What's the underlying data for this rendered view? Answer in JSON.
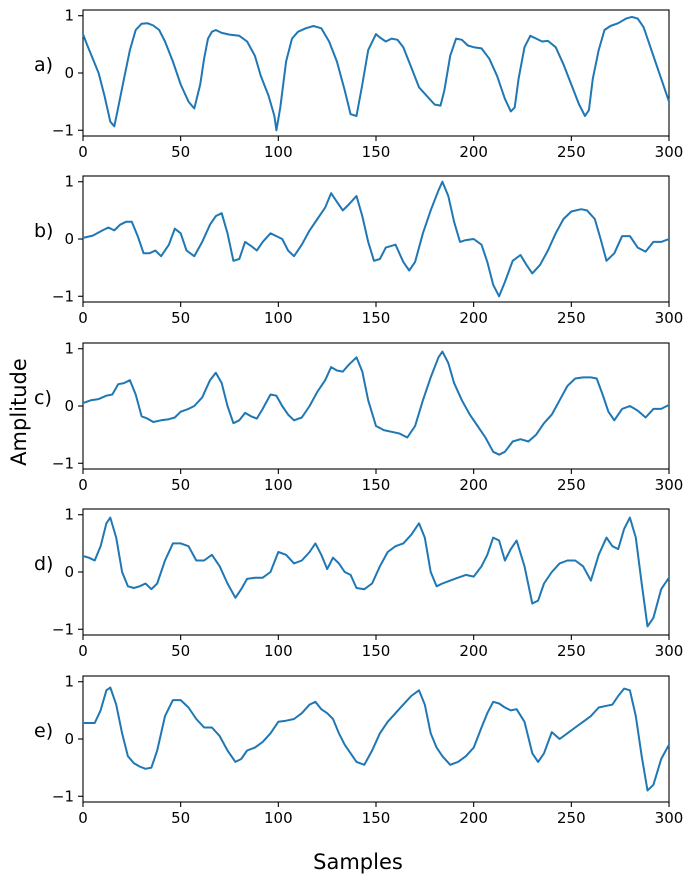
{
  "chart_data": {
    "type": "line",
    "xlabel": "Samples",
    "ylabel": "Amplitude",
    "line_color": "#1f77b4",
    "grid": false,
    "panels": [
      {
        "label": "a)",
        "xlim": [
          0,
          300
        ],
        "ylim": [
          -1.1,
          1.1
        ],
        "xticks": [
          0,
          50,
          100,
          150,
          200,
          250,
          300
        ],
        "yticks": [
          -1,
          0,
          1
        ],
        "series": [
          {
            "x": [
              0,
              2,
              5,
              8,
              11,
              14,
              16,
              18,
              21,
              24,
              27,
              30,
              33,
              36,
              39,
              42,
              46,
              50,
              54,
              57,
              60,
              62,
              64,
              66,
              68,
              71,
              75,
              80,
              84,
              88,
              91,
              95,
              98,
              99,
              101,
              104,
              107,
              110,
              114,
              118,
              122,
              126,
              130,
              134,
              137,
              140,
              143,
              146,
              150,
              152,
              155,
              158,
              161,
              164,
              168,
              172,
              176,
              180,
              183,
              185,
              188,
              191,
              194,
              197,
              200,
              204,
              208,
              212,
              216,
              219,
              221,
              223,
              226,
              229,
              232,
              235,
              238,
              242,
              246,
              250,
              254,
              257,
              259,
              261,
              264,
              267,
              270,
              274,
              278,
              281,
              284,
              287,
              290,
              293,
              296,
              298,
              300
            ],
            "y": [
              0.68,
              0.5,
              0.25,
              0.0,
              -0.4,
              -0.85,
              -0.93,
              -0.6,
              -0.1,
              0.4,
              0.75,
              0.86,
              0.87,
              0.83,
              0.75,
              0.55,
              0.2,
              -0.2,
              -0.5,
              -0.62,
              -0.2,
              0.25,
              0.6,
              0.72,
              0.75,
              0.7,
              0.67,
              0.65,
              0.55,
              0.3,
              -0.05,
              -0.4,
              -0.75,
              -1.0,
              -0.6,
              0.2,
              0.6,
              0.72,
              0.78,
              0.82,
              0.78,
              0.55,
              0.2,
              -0.3,
              -0.72,
              -0.75,
              -0.2,
              0.4,
              0.68,
              0.62,
              0.55,
              0.6,
              0.58,
              0.45,
              0.1,
              -0.25,
              -0.4,
              -0.55,
              -0.57,
              -0.3,
              0.3,
              0.6,
              0.58,
              0.48,
              0.45,
              0.43,
              0.25,
              -0.05,
              -0.45,
              -0.67,
              -0.6,
              -0.1,
              0.45,
              0.65,
              0.6,
              0.55,
              0.56,
              0.45,
              0.15,
              -0.2,
              -0.55,
              -0.75,
              -0.65,
              -0.1,
              0.4,
              0.75,
              0.82,
              0.87,
              0.95,
              0.98,
              0.95,
              0.8,
              0.5,
              0.2,
              -0.1,
              -0.3,
              -0.5
            ]
          }
        ]
      },
      {
        "label": "b)",
        "xlim": [
          0,
          300
        ],
        "ylim": [
          -1.1,
          1.1
        ],
        "xticks": [
          0,
          50,
          100,
          150,
          200,
          250,
          300
        ],
        "yticks": [
          -1,
          0,
          1
        ],
        "series": [
          {
            "x": [
              0,
              5,
              10,
              13,
              16,
              19,
              22,
              25,
              28,
              31,
              34,
              37,
              40,
              44,
              47,
              50,
              53,
              57,
              61,
              65,
              68,
              71,
              74,
              77,
              80,
              83,
              86,
              89,
              92,
              96,
              99,
              102,
              105,
              108,
              112,
              116,
              120,
              124,
              127,
              130,
              133,
              136,
              140,
              143,
              146,
              149,
              152,
              155,
              160,
              164,
              167,
              170,
              174,
              178,
              182,
              184,
              187,
              190,
              193,
              196,
              200,
              204,
              207,
              210,
              213,
              216,
              220,
              224,
              227,
              230,
              234,
              238,
              242,
              246,
              250,
              255,
              258,
              262,
              265,
              268,
              272,
              276,
              280,
              284,
              288,
              292,
              296,
              300
            ],
            "y": [
              0.02,
              0.06,
              0.15,
              0.2,
              0.15,
              0.25,
              0.3,
              0.3,
              0.05,
              -0.25,
              -0.25,
              -0.2,
              -0.3,
              -0.1,
              0.18,
              0.1,
              -0.2,
              -0.3,
              -0.05,
              0.25,
              0.4,
              0.45,
              0.1,
              -0.38,
              -0.35,
              -0.05,
              -0.12,
              -0.2,
              -0.05,
              0.1,
              0.05,
              0.0,
              -0.2,
              -0.3,
              -0.1,
              0.15,
              0.35,
              0.55,
              0.8,
              0.65,
              0.5,
              0.6,
              0.75,
              0.4,
              -0.05,
              -0.38,
              -0.35,
              -0.15,
              -0.1,
              -0.4,
              -0.55,
              -0.4,
              0.1,
              0.5,
              0.85,
              1.0,
              0.75,
              0.3,
              -0.05,
              -0.02,
              0.0,
              -0.1,
              -0.4,
              -0.8,
              -1.0,
              -0.75,
              -0.38,
              -0.28,
              -0.45,
              -0.6,
              -0.45,
              -0.2,
              0.1,
              0.35,
              0.48,
              0.52,
              0.5,
              0.35,
              0.0,
              -0.38,
              -0.25,
              0.05,
              0.05,
              -0.15,
              -0.22,
              -0.05,
              -0.05,
              0.0
            ]
          }
        ]
      },
      {
        "label": "c)",
        "xlim": [
          0,
          300
        ],
        "ylim": [
          -1.1,
          1.1
        ],
        "xticks": [
          0,
          50,
          100,
          150,
          200,
          250,
          300
        ],
        "yticks": [
          -1,
          0,
          1
        ],
        "series": [
          {
            "x": [
              0,
              4,
              8,
              12,
              15,
              18,
              21,
              24,
              27,
              30,
              33,
              36,
              40,
              44,
              47,
              50,
              54,
              57,
              61,
              65,
              68,
              71,
              74,
              77,
              80,
              83,
              86,
              89,
              92,
              96,
              99,
              102,
              105,
              108,
              112,
              116,
              120,
              124,
              127,
              130,
              133,
              136,
              140,
              143,
              146,
              150,
              154,
              158,
              162,
              166,
              170,
              174,
              178,
              182,
              184,
              187,
              190,
              194,
              198,
              202,
              206,
              210,
              213,
              216,
              220,
              224,
              228,
              232,
              236,
              240,
              244,
              248,
              252,
              256,
              260,
              263,
              266,
              269,
              272,
              276,
              280,
              284,
              288,
              292,
              296,
              300
            ],
            "y": [
              0.05,
              0.1,
              0.12,
              0.18,
              0.2,
              0.38,
              0.4,
              0.45,
              0.2,
              -0.18,
              -0.22,
              -0.28,
              -0.25,
              -0.23,
              -0.2,
              -0.1,
              -0.05,
              0.0,
              0.15,
              0.45,
              0.58,
              0.4,
              0.0,
              -0.3,
              -0.25,
              -0.12,
              -0.18,
              -0.22,
              -0.05,
              0.2,
              0.18,
              0.0,
              -0.15,
              -0.25,
              -0.2,
              0.0,
              0.25,
              0.45,
              0.68,
              0.62,
              0.6,
              0.72,
              0.85,
              0.6,
              0.1,
              -0.35,
              -0.42,
              -0.45,
              -0.48,
              -0.55,
              -0.35,
              0.1,
              0.5,
              0.85,
              0.95,
              0.75,
              0.4,
              0.1,
              -0.15,
              -0.35,
              -0.55,
              -0.8,
              -0.85,
              -0.8,
              -0.62,
              -0.58,
              -0.62,
              -0.5,
              -0.3,
              -0.15,
              0.1,
              0.35,
              0.48,
              0.5,
              0.5,
              0.48,
              0.2,
              -0.1,
              -0.25,
              -0.05,
              0.0,
              -0.08,
              -0.2,
              -0.05,
              -0.05,
              0.02
            ]
          }
        ]
      },
      {
        "label": "d)",
        "xlim": [
          0,
          300
        ],
        "ylim": [
          -1.1,
          1.1
        ],
        "xticks": [
          0,
          50,
          100,
          150,
          200,
          250,
          300
        ],
        "yticks": [
          -1,
          0,
          1
        ],
        "series": [
          {
            "x": [
              0,
              3,
              6,
              9,
              12,
              14,
              17,
              20,
              23,
              26,
              29,
              32,
              35,
              38,
              42,
              46,
              50,
              54,
              58,
              62,
              66,
              70,
              74,
              78,
              81,
              84,
              88,
              92,
              96,
              100,
              104,
              108,
              112,
              116,
              119,
              122,
              125,
              128,
              131,
              134,
              137,
              140,
              144,
              148,
              152,
              156,
              160,
              164,
              168,
              172,
              175,
              178,
              181,
              184,
              188,
              192,
              196,
              200,
              204,
              207,
              210,
              213,
              216,
              219,
              222,
              226,
              230,
              233,
              236,
              240,
              244,
              248,
              252,
              256,
              260,
              264,
              268,
              271,
              274,
              277,
              280,
              283,
              286,
              289,
              292,
              296,
              300
            ],
            "y": [
              0.28,
              0.25,
              0.2,
              0.45,
              0.85,
              0.95,
              0.6,
              0.0,
              -0.25,
              -0.28,
              -0.25,
              -0.2,
              -0.3,
              -0.2,
              0.2,
              0.5,
              0.5,
              0.45,
              0.2,
              0.2,
              0.3,
              0.1,
              -0.2,
              -0.45,
              -0.3,
              -0.12,
              -0.1,
              -0.1,
              0.0,
              0.35,
              0.3,
              0.15,
              0.2,
              0.35,
              0.5,
              0.3,
              0.05,
              0.25,
              0.15,
              0.0,
              -0.05,
              -0.28,
              -0.3,
              -0.2,
              0.1,
              0.35,
              0.45,
              0.5,
              0.65,
              0.85,
              0.6,
              0.0,
              -0.25,
              -0.2,
              -0.15,
              -0.1,
              -0.05,
              -0.08,
              0.1,
              0.3,
              0.6,
              0.55,
              0.2,
              0.4,
              0.55,
              0.1,
              -0.55,
              -0.5,
              -0.2,
              0.0,
              0.15,
              0.2,
              0.2,
              0.1,
              -0.15,
              0.3,
              0.6,
              0.45,
              0.4,
              0.75,
              0.95,
              0.6,
              -0.2,
              -0.95,
              -0.8,
              -0.3,
              -0.1
            ]
          }
        ]
      },
      {
        "label": "e)",
        "xlim": [
          0,
          300
        ],
        "ylim": [
          -1.1,
          1.1
        ],
        "xticks": [
          0,
          50,
          100,
          150,
          200,
          250,
          300
        ],
        "yticks": [
          -1,
          0,
          1
        ],
        "series": [
          {
            "x": [
              0,
              3,
              6,
              9,
              12,
              14,
              17,
              20,
              23,
              26,
              29,
              32,
              35,
              38,
              42,
              46,
              50,
              54,
              58,
              62,
              66,
              70,
              74,
              78,
              81,
              84,
              88,
              92,
              96,
              100,
              104,
              108,
              112,
              116,
              119,
              122,
              125,
              128,
              131,
              134,
              137,
              140,
              144,
              148,
              152,
              156,
              160,
              164,
              168,
              172,
              175,
              178,
              181,
              184,
              188,
              192,
              196,
              200,
              204,
              207,
              210,
              213,
              216,
              219,
              222,
              226,
              230,
              233,
              236,
              240,
              244,
              248,
              252,
              256,
              260,
              264,
              268,
              271,
              274,
              277,
              280,
              283,
              286,
              289,
              292,
              296,
              300
            ],
            "y": [
              0.28,
              0.28,
              0.28,
              0.5,
              0.85,
              0.9,
              0.6,
              0.1,
              -0.3,
              -0.42,
              -0.48,
              -0.52,
              -0.5,
              -0.2,
              0.4,
              0.68,
              0.68,
              0.55,
              0.35,
              0.2,
              0.2,
              0.05,
              -0.2,
              -0.4,
              -0.35,
              -0.2,
              -0.15,
              -0.05,
              0.1,
              0.3,
              0.32,
              0.35,
              0.45,
              0.6,
              0.65,
              0.52,
              0.45,
              0.35,
              0.1,
              -0.1,
              -0.25,
              -0.4,
              -0.45,
              -0.2,
              0.1,
              0.3,
              0.45,
              0.6,
              0.75,
              0.85,
              0.6,
              0.1,
              -0.15,
              -0.3,
              -0.45,
              -0.4,
              -0.3,
              -0.15,
              0.2,
              0.45,
              0.65,
              0.62,
              0.55,
              0.5,
              0.52,
              0.3,
              -0.25,
              -0.4,
              -0.25,
              0.12,
              0.0,
              0.1,
              0.2,
              0.3,
              0.4,
              0.55,
              0.58,
              0.6,
              0.75,
              0.88,
              0.85,
              0.4,
              -0.3,
              -0.9,
              -0.8,
              -0.35,
              -0.1
            ]
          }
        ]
      }
    ]
  }
}
